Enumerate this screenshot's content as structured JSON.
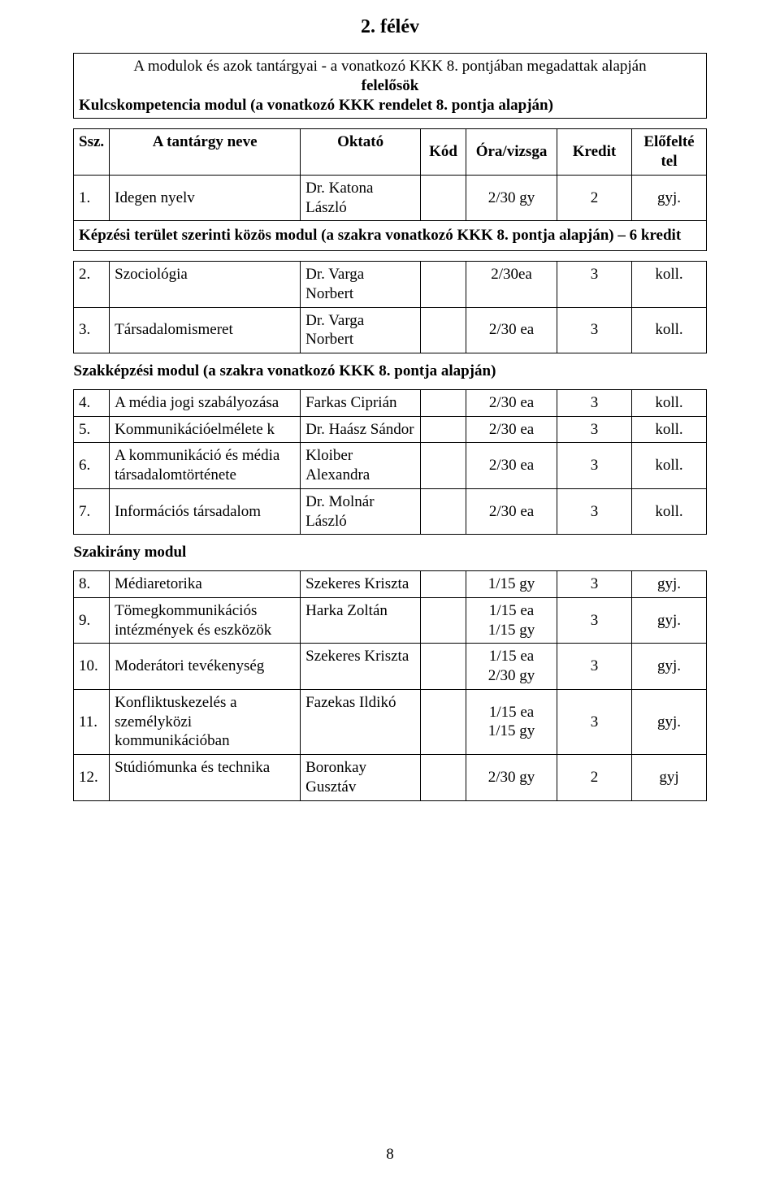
{
  "title": "2. félév",
  "intro_line1_prefix": "A modulok és azok tantárgyai - a vonatkozó KKK 8. pontjában megadattak alapján",
  "intro_line2": "felelősök",
  "kulcs_heading": "Kulcskompetencia modul (a vonatkozó KKK rendelet 8. pontja alapján)",
  "columns": {
    "ssz": "Ssz.",
    "name": "A tantárgy neve",
    "oktato": "Oktató",
    "kod": "Kód",
    "ora": "Óra/vizsga",
    "kredit": "Kredit",
    "elofeltetel": "Előfelté tel"
  },
  "row1": {
    "n": "1.",
    "name": "Idegen nyelv",
    "okt": "Dr. Katona László",
    "kod": "",
    "ora": "2/30 gy",
    "kred": "2",
    "elo": "gyj."
  },
  "kepzesi_heading": "Képzési terület szerinti közös modul (a szakra vonatkozó KKK 8. pontja alapján) – 6 kredit",
  "row2": {
    "n": "2.",
    "name": "Szociológia",
    "okt": "Dr. Varga Norbert",
    "kod": "",
    "ora": "2/30ea",
    "kred": "3",
    "elo": "koll."
  },
  "row3": {
    "n": "3.",
    "name": "Társadalomismeret",
    "okt": "Dr. Varga Norbert",
    "kod": "",
    "ora": "2/30 ea",
    "kred": "3",
    "elo": "koll."
  },
  "szakkepzesi_heading": "Szakképzési modul (a szakra vonatkozó KKK 8. pontja alapján)",
  "row4": {
    "n": "4.",
    "name": "A média jogi szabályozása",
    "okt": "Farkas Ciprián",
    "kod": "",
    "ora": "2/30 ea",
    "kred": "3",
    "elo": "koll."
  },
  "row5": {
    "n": "5.",
    "name": "Kommunikációelmélete k",
    "okt": "Dr. Haász Sándor",
    "kod": "",
    "ora": "2/30 ea",
    "kred": "3",
    "elo": "koll."
  },
  "row6": {
    "n": "6.",
    "name": "A kommunikáció és média társadalomtörténete",
    "okt": "Kloiber Alexandra",
    "kod": "",
    "ora": "2/30 ea",
    "kred": "3",
    "elo": "koll."
  },
  "row7": {
    "n": "7.",
    "name": "Információs társadalom",
    "okt": "Dr. Molnár László",
    "kod": "",
    "ora": "2/30 ea",
    "kred": "3",
    "elo": "koll."
  },
  "szakirany_heading": "Szakirány modul",
  "row8": {
    "n": "8.",
    "name": "Médiaretorika",
    "okt": "Szekeres Kriszta",
    "kod": "",
    "ora": "1/15 gy",
    "kred": "3",
    "elo": "gyj."
  },
  "row9": {
    "n": "9.",
    "name": "Tömegkommunikációs intézmények és eszközök",
    "okt": "Harka Zoltán",
    "kod": "",
    "ora_l1": "1/15 ea",
    "ora_l2": "1/15 gy",
    "kred": "3",
    "elo": "gyj."
  },
  "row10": {
    "n": "10.",
    "name": "Moderátori tevékenység",
    "okt": "Szekeres Kriszta",
    "kod": "",
    "ora_l1": "1/15 ea",
    "ora_l2": "2/30 gy",
    "kred": "3",
    "elo": "gyj."
  },
  "row11": {
    "n": "11.",
    "name": "Konfliktuskezelés a személyközi kommunikációban",
    "okt": "Fazekas Ildikó",
    "kod": "",
    "ora_l1": "1/15 ea",
    "ora_l2": "1/15 gy",
    "kred": "3",
    "elo": "gyj."
  },
  "row12": {
    "n": "12.",
    "name": "Stúdiómunka és technika",
    "okt": "Boronkay Gusztáv",
    "kod": "",
    "ora": "2/30 gy",
    "kred": "2",
    "elo": "gyj"
  },
  "page_number": "8"
}
